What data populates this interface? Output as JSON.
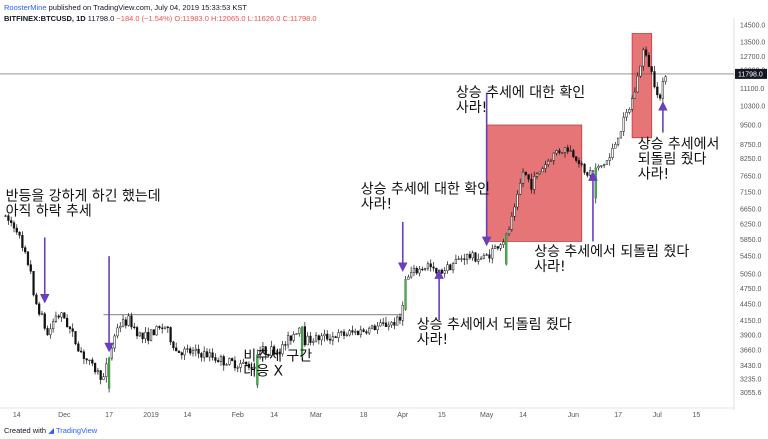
{
  "header": {
    "author": "RoosterMine",
    "published": "published on TradingView.com, July 04, 2019 15:33:53 KST",
    "symbol": "BITFINEX:BTCUSD, 1D",
    "last": "11798.0",
    "change": "−184.0 (−1.54%)",
    "ohlc": "O:11983.0 H:12065.0 L:11626.0 C:11798.0"
  },
  "footer": {
    "created": "Created with",
    "brand": "TradingView"
  },
  "colors": {
    "up": "#4caf50",
    "down": "#111111",
    "highlight_up": "#c6d400",
    "box": "#e0575a",
    "arrow": "#6a3fbf"
  },
  "chart_data": {
    "type": "candlestick",
    "y_scale": "log",
    "ylim": [
      2900,
      14700
    ],
    "y_ticks": [
      3055.6,
      3235.0,
      3430.0,
      3660.0,
      3900.0,
      4150.0,
      4450.0,
      4750.0,
      5050.0,
      5450.0,
      5850.0,
      6250.0,
      6650.0,
      7150.0,
      7650.0,
      8250.0,
      8750.0,
      9500.0,
      10300.0,
      11100.0,
      12000.0,
      12700.0,
      13500.0,
      14500.0
    ],
    "x_ticks": [
      {
        "label": "14",
        "date": "2018-11-14"
      },
      {
        "label": "Dec",
        "date": "2018-12-01"
      },
      {
        "label": "17",
        "date": "2018-12-17"
      },
      {
        "label": "2019",
        "date": "2019-01-01"
      },
      {
        "label": "14",
        "date": "2019-01-14"
      },
      {
        "label": "Feb",
        "date": "2019-02-01"
      },
      {
        "label": "14",
        "date": "2019-02-14"
      },
      {
        "label": "Mar",
        "date": "2019-03-01"
      },
      {
        "label": "18",
        "date": "2019-03-18"
      },
      {
        "label": "Apr",
        "date": "2019-04-01"
      },
      {
        "label": "15",
        "date": "2019-04-15"
      },
      {
        "label": "May",
        "date": "2019-05-01"
      },
      {
        "label": "14",
        "date": "2019-05-14"
      },
      {
        "label": "Jun",
        "date": "2019-06-01"
      },
      {
        "label": "17",
        "date": "2019-06-17"
      },
      {
        "label": "Jul",
        "date": "2019-07-01"
      },
      {
        "label": "15",
        "date": "2019-07-15"
      }
    ],
    "last_price": 11798.0,
    "resistance": {
      "value": 4250,
      "from": "2018-12-15",
      "to": "2019-04-01"
    },
    "shaded_zones": [
      {
        "from": "2019-05-01",
        "to": "2019-06-04",
        "low": 5800,
        "high": 9500
      },
      {
        "from": "2019-06-22",
        "to": "2019-06-29",
        "low": 9000,
        "high": 14000
      }
    ],
    "waypoints": [
      {
        "date": "2018-11-09",
        "price": 6450
      },
      {
        "date": "2018-11-14",
        "price": 6150
      },
      {
        "date": "2018-11-16",
        "price": 5600
      },
      {
        "date": "2018-11-19",
        "price": 5150
      },
      {
        "date": "2018-11-20",
        "price": 4550
      },
      {
        "date": "2018-11-22",
        "price": 4350
      },
      {
        "date": "2018-11-25",
        "price": 3900
      },
      {
        "date": "2018-11-28",
        "price": 4250
      },
      {
        "date": "2018-12-01",
        "price": 4200
      },
      {
        "date": "2018-12-06",
        "price": 3700
      },
      {
        "date": "2018-12-10",
        "price": 3450
      },
      {
        "date": "2018-12-15",
        "price": 3250
      },
      {
        "date": "2018-12-17",
        "price": 3550
      },
      {
        "date": "2018-12-20",
        "price": 4050
      },
      {
        "date": "2018-12-24",
        "price": 4150
      },
      {
        "date": "2018-12-29",
        "price": 3850
      },
      {
        "date": "2019-01-06",
        "price": 4050
      },
      {
        "date": "2019-01-10",
        "price": 3650
      },
      {
        "date": "2019-01-20",
        "price": 3600
      },
      {
        "date": "2019-01-28",
        "price": 3480
      },
      {
        "date": "2019-02-07",
        "price": 3420
      },
      {
        "date": "2019-02-08",
        "price": 3650
      },
      {
        "date": "2019-02-16",
        "price": 3650
      },
      {
        "date": "2019-02-24",
        "price": 4100
      },
      {
        "date": "2019-02-25",
        "price": 3820
      },
      {
        "date": "2019-03-10",
        "price": 3900
      },
      {
        "date": "2019-03-20",
        "price": 4000
      },
      {
        "date": "2019-03-31",
        "price": 4150
      },
      {
        "date": "2019-04-02",
        "price": 4900
      },
      {
        "date": "2019-04-04",
        "price": 5050
      },
      {
        "date": "2019-04-10",
        "price": 5250
      },
      {
        "date": "2019-04-13",
        "price": 5050
      },
      {
        "date": "2019-04-23",
        "price": 5450
      },
      {
        "date": "2019-04-30",
        "price": 5400
      },
      {
        "date": "2019-05-08",
        "price": 5900
      },
      {
        "date": "2019-05-11",
        "price": 6600
      },
      {
        "date": "2019-05-14",
        "price": 7800
      },
      {
        "date": "2019-05-17",
        "price": 7400
      },
      {
        "date": "2019-05-21",
        "price": 7950
      },
      {
        "date": "2019-05-26",
        "price": 8500
      },
      {
        "date": "2019-05-30",
        "price": 8600
      },
      {
        "date": "2019-06-03",
        "price": 8200
      },
      {
        "date": "2019-06-05",
        "price": 7700
      },
      {
        "date": "2019-06-10",
        "price": 7900
      },
      {
        "date": "2019-06-14",
        "price": 8250
      },
      {
        "date": "2019-06-17",
        "price": 9100
      },
      {
        "date": "2019-06-21",
        "price": 10200
      },
      {
        "date": "2019-06-23",
        "price": 11000
      },
      {
        "date": "2019-06-26",
        "price": 13000
      },
      {
        "date": "2019-06-28",
        "price": 12300
      },
      {
        "date": "2019-07-02",
        "price": 10600
      },
      {
        "date": "2019-07-04",
        "price": 11900
      }
    ],
    "highlighted_up_days": [
      "2018-12-17",
      "2019-02-08",
      "2019-02-24",
      "2019-04-02",
      "2019-05-08",
      "2019-06-09"
    ],
    "annotations": [
      {
        "text": [
          "반등을 강하게 하긴 했는데",
          "아직 하락 추세"
        ],
        "date": "2018-11-10",
        "price": 6900
      },
      {
        "text": [
          "상승 추세에 대한 확인",
          "사라!"
        ],
        "date": "2019-03-17",
        "price": 7100
      },
      {
        "text": [
          "상승 추세에 대한 확인",
          "사라!"
        ],
        "date": "2019-04-20",
        "price": 10700
      },
      {
        "text": [
          "상승 추세에서 되돌림 줬다",
          "사라!"
        ],
        "date": "2019-04-06",
        "price": 4000
      },
      {
        "text": [
          "상승 추세에서 되돌림 줬다",
          "사라!"
        ],
        "date": "2019-05-18",
        "price": 5450
      },
      {
        "text": [
          "상승 추세에서",
          "되돌림 줬다",
          "사라!"
        ],
        "date": "2019-06-24",
        "price": 8600
      },
      {
        "text": [
          "비추세 구간",
          "대응 X"
        ],
        "date": "2019-02-03",
        "price": 3500
      }
    ],
    "arrows": [
      {
        "date": "2018-11-24",
        "from_price": 5900,
        "to_price": 4550
      },
      {
        "date": "2018-12-17",
        "from_price": 5450,
        "to_price": 3700
      },
      {
        "date": "2019-04-01",
        "from_price": 6300,
        "to_price": 5200
      },
      {
        "date": "2019-04-14",
        "from_price": 4150,
        "to_price": 5050
      },
      {
        "date": "2019-05-01",
        "from_price": 10900,
        "to_price": 5800
      },
      {
        "date": "2019-06-08",
        "from_price": 5800,
        "to_price": 7650
      },
      {
        "date": "2019-07-03",
        "from_price": 9200,
        "to_price": 10300
      }
    ]
  }
}
